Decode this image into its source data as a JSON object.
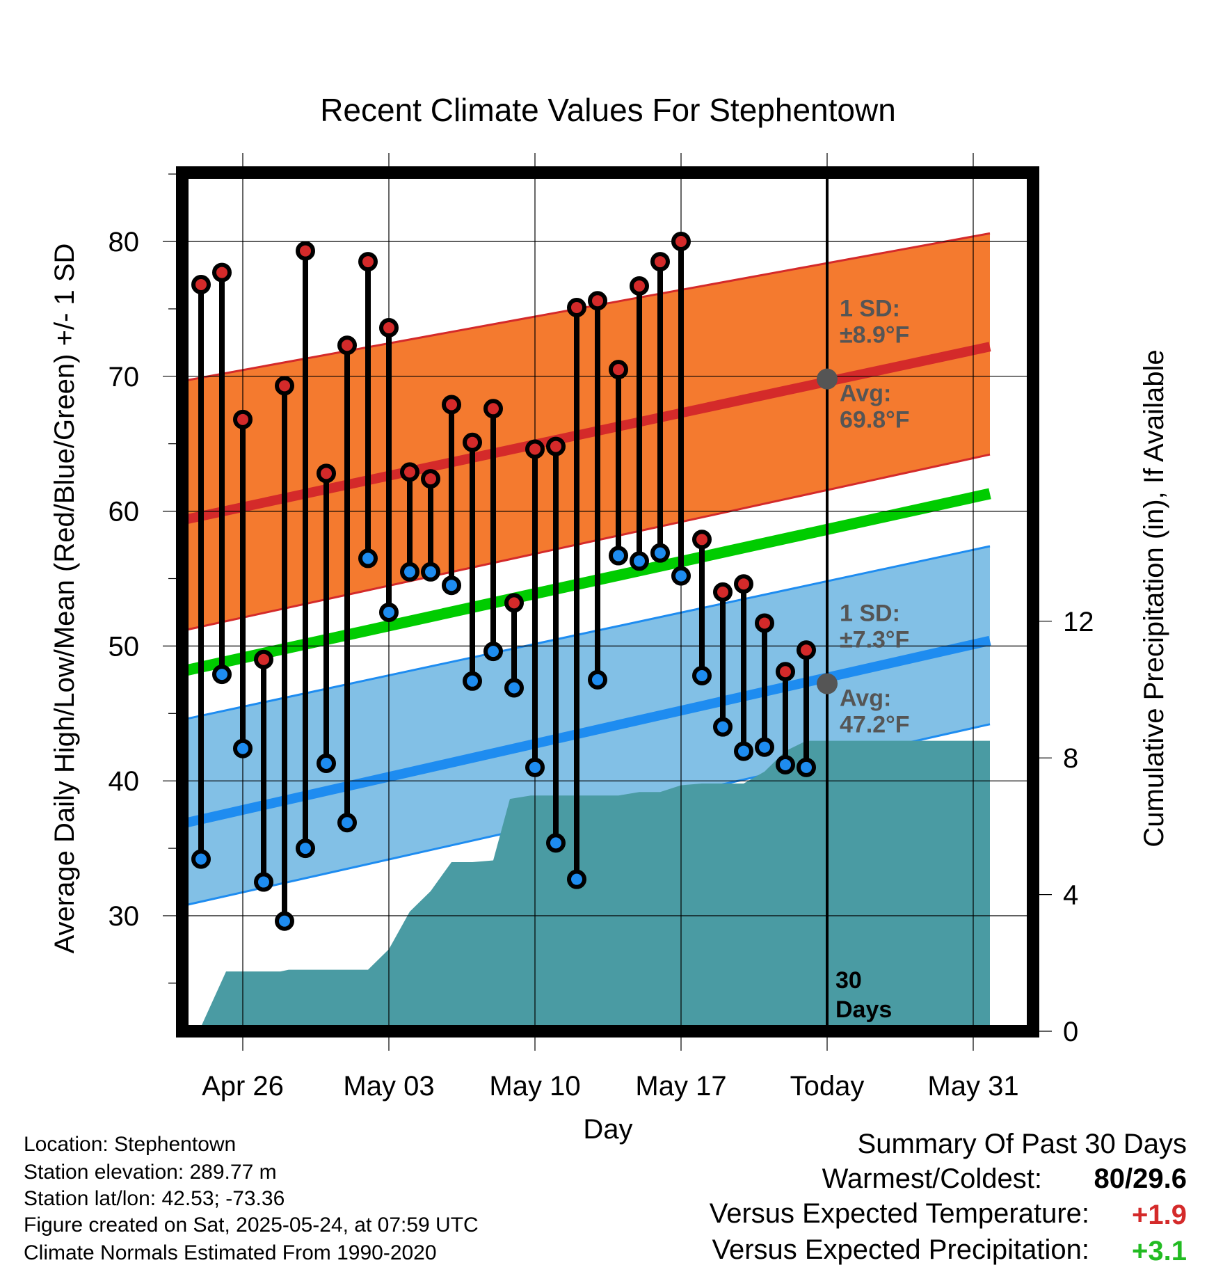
{
  "chart_data": {
    "type": "line",
    "title": "Recent Climate Values For Stephentown",
    "xlabel": "Day",
    "ylabel": "Average Daily High/Low/Mean (Red/Blue/Green) +/- 1 SD",
    "ylabel_right": "Cumulative Precipitation (in), If Available",
    "xlim": [
      -4,
      37
    ],
    "ylim": [
      21.5,
      85
    ],
    "ylim_right": [
      0,
      28.4
    ],
    "x_ticks": [
      0,
      7,
      14,
      21,
      28,
      35
    ],
    "x_tick_labels": [
      "Apr 26",
      "May 03",
      "May 10",
      "May 17",
      "Today",
      "May 31"
    ],
    "y_ticks": [
      30,
      40,
      50,
      60,
      70,
      80
    ],
    "y_tick_labels": [
      "30",
      "40",
      "50",
      "60",
      "70",
      "80"
    ],
    "y_right_ticks": [
      0,
      4,
      8,
      12
    ],
    "y_right_tick_labels": [
      "0",
      "4",
      "8",
      "12"
    ],
    "grid": true,
    "today_x": 28,
    "today_label_line1": "30",
    "today_label_line2": "Days",
    "normals": {
      "high_avg": [
        59.4,
        72.2
      ],
      "high_sd_upper": [
        69.7,
        80.6
      ],
      "high_sd_lower": [
        51.2,
        64.2
      ],
      "mean_avg": [
        48.2,
        61.3
      ],
      "low_avg": [
        36.9,
        50.4
      ],
      "low_sd_upper": [
        44.6,
        57.4
      ],
      "low_sd_lower": [
        30.8,
        44.2
      ],
      "x_range": [
        -2.7,
        35.8
      ]
    },
    "high_annotation": {
      "line1": "1 SD:",
      "line2": "±8.9°F",
      "line3": "Avg:",
      "line4": "69.8°F",
      "avg": 69.8
    },
    "low_annotation": {
      "line1": "1 SD:",
      "line2": "±7.3°F",
      "line3": "Avg:",
      "line4": "47.2°F",
      "avg": 47.2
    },
    "series": [
      {
        "name": "High",
        "x": [
          -2,
          -1,
          0,
          1,
          2,
          3,
          4,
          5,
          6,
          7,
          8,
          9,
          10,
          11,
          12,
          13,
          14,
          15,
          16,
          17,
          18,
          19,
          20,
          21,
          22,
          23,
          24,
          25,
          26,
          27
        ],
        "values": [
          76.8,
          77.7,
          66.8,
          49.0,
          69.3,
          79.3,
          62.8,
          72.3,
          78.5,
          73.6,
          62.9,
          62.4,
          67.9,
          65.1,
          67.6,
          53.2,
          64.6,
          64.8,
          75.1,
          75.6,
          70.5,
          76.7,
          78.5,
          80.0,
          57.9,
          54.0,
          54.6,
          51.7,
          48.1,
          49.7
        ]
      },
      {
        "name": "Low",
        "x": [
          -2,
          -1,
          0,
          1,
          2,
          3,
          4,
          5,
          6,
          7,
          8,
          9,
          10,
          11,
          12,
          13,
          14,
          15,
          16,
          17,
          18,
          19,
          20,
          21,
          22,
          23,
          24,
          25,
          26,
          27
        ],
        "values": [
          34.2,
          47.9,
          42.4,
          32.5,
          29.6,
          35.0,
          41.3,
          36.9,
          56.5,
          52.5,
          55.5,
          55.5,
          54.5,
          47.4,
          49.6,
          46.9,
          41.0,
          35.4,
          32.7,
          47.5,
          56.7,
          56.3,
          56.9,
          55.2,
          47.8,
          44.0,
          42.2,
          42.5,
          41.2,
          41.0
        ]
      },
      {
        "name": "Cumulative Precipitation",
        "x": [
          -2.1,
          -0.8,
          1.8,
          2.2,
          6.0,
          7.0,
          8.0,
          9.0,
          10.0,
          11.0,
          12.0,
          12.8,
          13.8,
          16.0,
          17.0,
          18.0,
          19.0,
          20.0,
          21.0,
          22.0,
          23.0,
          24.0,
          25.0,
          26.0,
          27.0,
          35.8
        ],
        "values": [
          0,
          1.75,
          1.75,
          1.8,
          1.8,
          2.4,
          3.5,
          4.1,
          4.95,
          4.95,
          5.0,
          6.8,
          6.9,
          6.9,
          6.9,
          6.9,
          7.0,
          7.0,
          7.2,
          7.25,
          7.25,
          7.25,
          7.6,
          8.2,
          8.5,
          8.5
        ]
      }
    ],
    "colors": {
      "high_band": "#f47a2f",
      "high_avg_line": "#d42a2a",
      "mean_line": "#00cc00",
      "low_band": "#82c0e6",
      "low_avg_line": "#1e8cf0",
      "precip": "#4a9ba3",
      "high_marker": "#d42a2a",
      "low_marker": "#1e8cf0",
      "annotation_text": "#555555"
    }
  },
  "info": {
    "location": "Location: Stephentown",
    "elevation": "Station elevation: 289.77 m",
    "latlon": "Station lat/lon: 42.53; -73.36",
    "created": "Figure created on Sat, 2025-05-24, at 07:59 UTC",
    "normals": "Climate Normals Estimated From 1990-2020"
  },
  "summary": {
    "title": "Summary Of Past 30 Days",
    "row1_label": "Warmest/Coldest:",
    "row1_value": "80/29.6",
    "row2_label": "Versus Expected Temperature:",
    "row2_value": "+1.9",
    "row2_color": "#d42a2a",
    "row3_label": "Versus Expected Precipitation:",
    "row3_value": "+3.1",
    "row3_color": "#22bb22"
  }
}
